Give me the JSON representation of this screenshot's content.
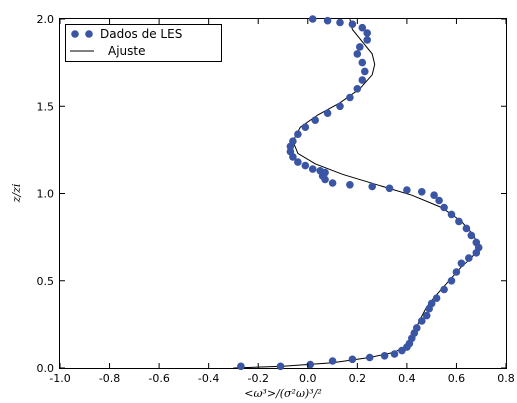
{
  "chart_data": {
    "type": "scatter",
    "xlabel": "<ω³>/(σ²ω)³/²",
    "ylabel": "z/zi",
    "xlim": [
      -1.0,
      0.8
    ],
    "ylim": [
      0.0,
      2.0
    ],
    "xticks": [
      "-1.0",
      "-0.8",
      "-0.6",
      "-0.4",
      "-0.2",
      "0.0",
      "0.2",
      "0.4",
      "0.6",
      "0.8"
    ],
    "yticks": [
      "0.0",
      "0.5",
      "1.0",
      "1.5",
      "2.0"
    ],
    "grid": false,
    "legend_position": "top-left",
    "legend": [
      "Dados de LES",
      "Ajuste"
    ],
    "colors": {
      "points": "#3a55a4",
      "fit": "#000000"
    },
    "series": [
      {
        "name": "Dados de LES",
        "kind": "scatter",
        "points": [
          [
            -0.27,
            0.01
          ],
          [
            -0.11,
            0.01
          ],
          [
            0.01,
            0.02
          ],
          [
            0.1,
            0.04
          ],
          [
            0.18,
            0.05
          ],
          [
            0.25,
            0.06
          ],
          [
            0.31,
            0.07
          ],
          [
            0.35,
            0.08
          ],
          [
            0.38,
            0.1
          ],
          [
            0.4,
            0.12
          ],
          [
            0.41,
            0.14
          ],
          [
            0.42,
            0.17
          ],
          [
            0.43,
            0.2
          ],
          [
            0.44,
            0.23
          ],
          [
            0.46,
            0.27
          ],
          [
            0.48,
            0.3
          ],
          [
            0.49,
            0.34
          ],
          [
            0.5,
            0.37
          ],
          [
            0.52,
            0.4
          ],
          [
            0.55,
            0.45
          ],
          [
            0.58,
            0.5
          ],
          [
            0.6,
            0.55
          ],
          [
            0.62,
            0.6
          ],
          [
            0.65,
            0.63
          ],
          [
            0.68,
            0.66
          ],
          [
            0.69,
            0.69
          ],
          [
            0.68,
            0.72
          ],
          [
            0.66,
            0.76
          ],
          [
            0.64,
            0.8
          ],
          [
            0.61,
            0.84
          ],
          [
            0.58,
            0.88
          ],
          [
            0.55,
            0.92
          ],
          [
            0.53,
            0.96
          ],
          [
            0.51,
            0.99
          ],
          [
            0.46,
            1.01
          ],
          [
            0.4,
            1.02
          ],
          [
            0.33,
            1.03
          ],
          [
            0.26,
            1.04
          ],
          [
            0.17,
            1.05
          ],
          [
            0.1,
            1.06
          ],
          [
            0.07,
            1.08
          ],
          [
            0.06,
            1.1
          ],
          [
            0.07,
            1.12
          ],
          [
            0.05,
            1.13
          ],
          [
            0.02,
            1.14
          ],
          [
            -0.01,
            1.16
          ],
          [
            -0.04,
            1.18
          ],
          [
            -0.06,
            1.21
          ],
          [
            -0.07,
            1.24
          ],
          [
            -0.07,
            1.27
          ],
          [
            -0.06,
            1.3
          ],
          [
            -0.04,
            1.34
          ],
          [
            -0.01,
            1.38
          ],
          [
            0.03,
            1.42
          ],
          [
            0.08,
            1.46
          ],
          [
            0.13,
            1.5
          ],
          [
            0.17,
            1.55
          ],
          [
            0.2,
            1.6
          ],
          [
            0.22,
            1.65
          ],
          [
            0.23,
            1.7
          ],
          [
            0.22,
            1.75
          ],
          [
            0.2,
            1.8
          ],
          [
            0.21,
            1.84
          ],
          [
            0.24,
            1.88
          ],
          [
            0.24,
            1.92
          ],
          [
            0.22,
            1.95
          ],
          [
            0.18,
            1.97
          ],
          [
            0.13,
            1.98
          ],
          [
            0.08,
            1.99
          ],
          [
            0.02,
            2.0
          ]
        ]
      },
      {
        "name": "Ajuste",
        "kind": "line",
        "points": [
          [
            -0.3,
            0.0
          ],
          [
            -0.1,
            0.01
          ],
          [
            0.1,
            0.03
          ],
          [
            0.25,
            0.06
          ],
          [
            0.35,
            0.09
          ],
          [
            0.4,
            0.13
          ],
          [
            0.43,
            0.2
          ],
          [
            0.45,
            0.27
          ],
          [
            0.48,
            0.35
          ],
          [
            0.52,
            0.42
          ],
          [
            0.57,
            0.5
          ],
          [
            0.62,
            0.58
          ],
          [
            0.66,
            0.63
          ],
          [
            0.69,
            0.69
          ],
          [
            0.67,
            0.76
          ],
          [
            0.62,
            0.84
          ],
          [
            0.54,
            0.92
          ],
          [
            0.42,
            0.99
          ],
          [
            0.28,
            1.05
          ],
          [
            0.14,
            1.11
          ],
          [
            0.03,
            1.17
          ],
          [
            -0.04,
            1.23
          ],
          [
            -0.06,
            1.3
          ],
          [
            -0.03,
            1.38
          ],
          [
            0.04,
            1.45
          ],
          [
            0.13,
            1.52
          ],
          [
            0.21,
            1.6
          ],
          [
            0.26,
            1.68
          ],
          [
            0.27,
            1.74
          ],
          [
            0.26,
            1.8
          ],
          [
            0.22,
            1.87
          ],
          [
            0.18,
            1.94
          ],
          [
            0.17,
            2.0
          ]
        ]
      }
    ]
  }
}
